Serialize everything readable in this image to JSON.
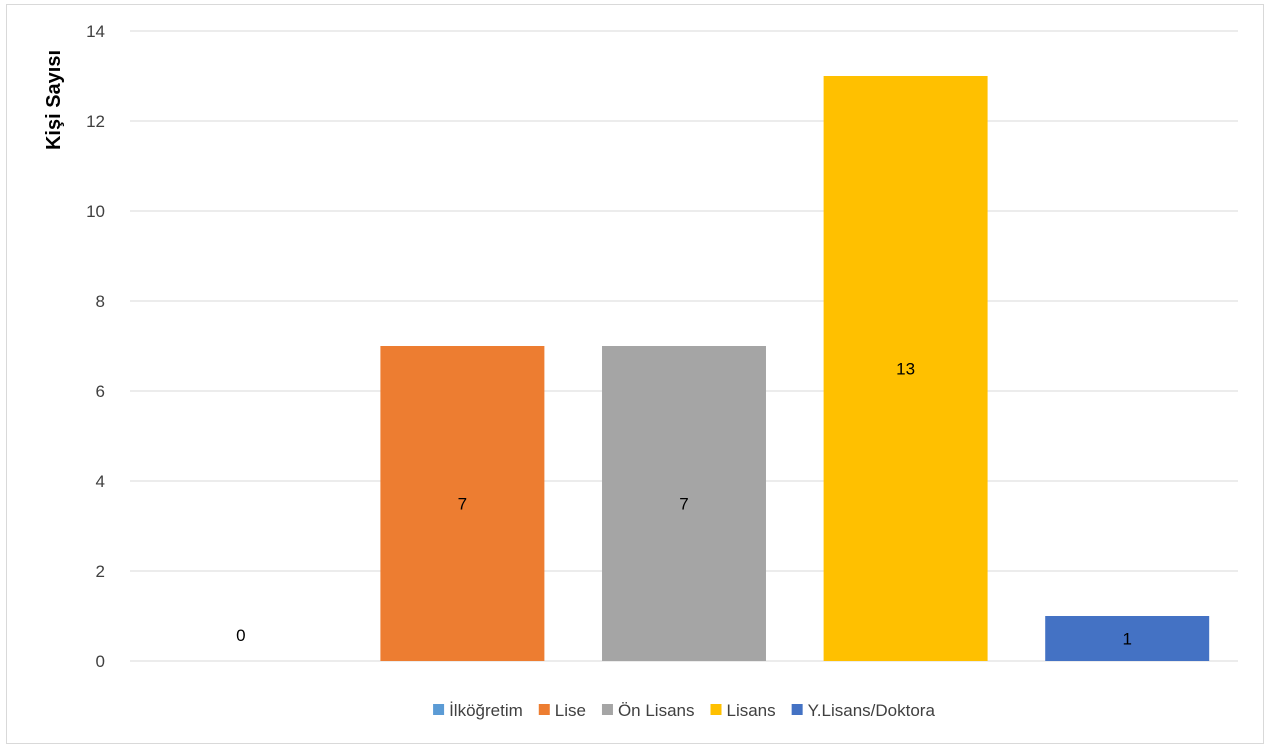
{
  "chart_data": {
    "type": "bar",
    "categories": [
      "İlköğretim",
      "Lise",
      "Ön Lisans",
      "Lisans",
      "Y.Lisans/Doktora"
    ],
    "values": [
      0,
      7,
      7,
      13,
      1
    ],
    "data_labels": [
      "0",
      "7",
      "7",
      "13",
      "1"
    ],
    "colors": [
      "#5b9bd5",
      "#ed7d31",
      "#a5a5a5",
      "#ffc000",
      "#4472c4"
    ],
    "title": "",
    "xlabel": "",
    "ylabel": "Kişi Sayısı",
    "ylim": [
      0,
      14
    ],
    "yticks": [
      0,
      2,
      4,
      6,
      8,
      10,
      12,
      14
    ],
    "ytick_labels": [
      "0",
      "2",
      "4",
      "6",
      "8",
      "10",
      "12",
      "14"
    ],
    "grid": true,
    "legend_position": "bottom",
    "legend": [
      "İlköğretim",
      "Lise",
      "Ön Lisans",
      "Lisans",
      "Y.Lisans/Doktora"
    ]
  }
}
